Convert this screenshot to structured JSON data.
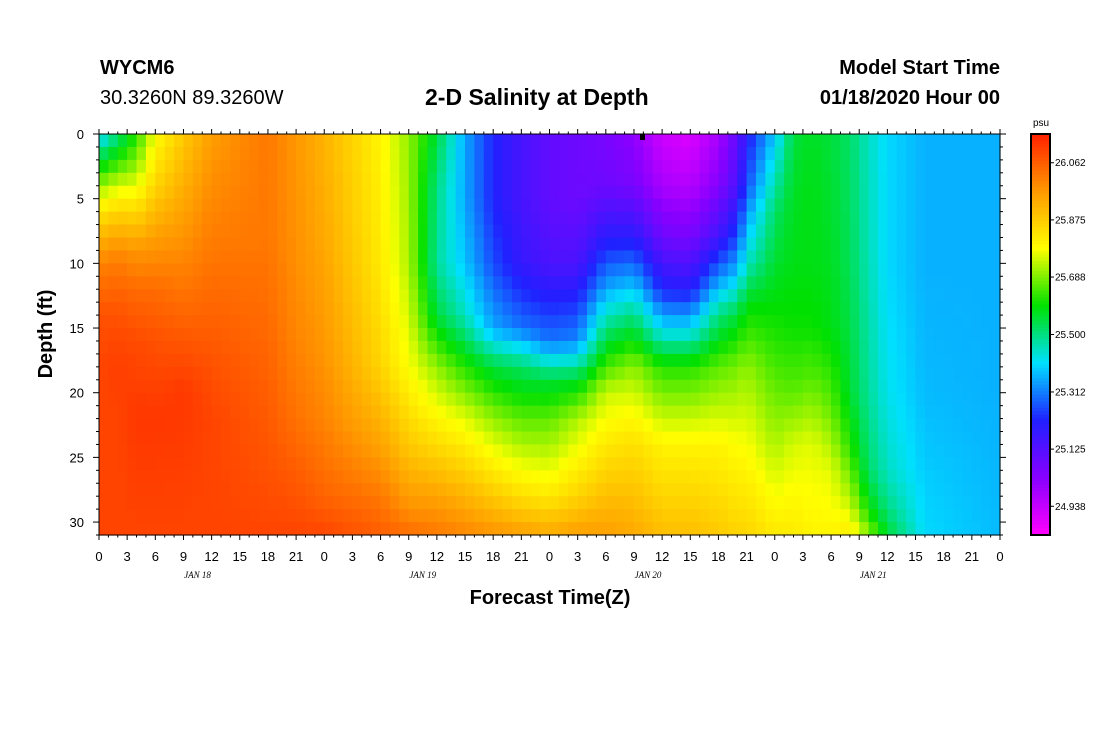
{
  "header": {
    "station_id": "WYCM6",
    "coords": "30.3260N 89.3260W",
    "title": "2-D Salinity at Depth",
    "start_label": "Model Start Time",
    "start_value": "01/18/2020 Hour 00"
  },
  "chart_data": {
    "type": "heatmap",
    "title": "2-D Salinity at Depth",
    "xlabel": "Forecast Time(Z)",
    "ylabel": "Depth (ft)",
    "x_hours_range": [
      0,
      96
    ],
    "x_tick_labels": [
      "0",
      "3",
      "6",
      "9",
      "12",
      "15",
      "18",
      "21",
      "0",
      "3",
      "6",
      "9",
      "12",
      "15",
      "18",
      "21",
      "0",
      "3",
      "6",
      "9",
      "12",
      "15",
      "18",
      "21",
      "0",
      "3",
      "6",
      "9",
      "12",
      "15",
      "18",
      "21",
      "0"
    ],
    "day_labels": [
      "JAN 18",
      "JAN 19",
      "JAN 20",
      "JAN 21"
    ],
    "y_ticks": [
      0,
      5,
      10,
      15,
      20,
      25,
      30
    ],
    "ylim": [
      0,
      31
    ],
    "y_inverted": true,
    "colorbar": {
      "unit": "psu",
      "ticks": [
        26.062,
        25.875,
        25.688,
        25.5,
        25.312,
        25.125,
        24.938
      ],
      "tick_labels": [
        "26.062",
        "25.875",
        "25.688",
        "25.500",
        "25.312",
        "25.125",
        "24.938"
      ],
      "range": [
        24.844,
        26.156
      ],
      "colors": [
        "#ff00ff",
        "#8800ff",
        "#2020ff",
        "#00e0ff",
        "#00e000",
        "#ffff00",
        "#ff9900",
        "#ff2000"
      ]
    },
    "columns_hours": [
      0,
      2,
      4,
      6,
      9,
      12,
      18,
      21,
      24,
      30,
      33,
      36,
      39,
      42,
      45,
      48,
      51,
      54,
      57,
      60,
      63,
      66,
      68,
      69,
      72,
      74,
      76,
      78,
      80,
      82,
      84,
      88,
      96
    ],
    "column_profiles": [
      {
        "depths": [
          0,
          2,
          4,
          6,
          8,
          10,
          14,
          18,
          22,
          31
        ],
        "salinity": [
          25.38,
          25.55,
          25.7,
          25.82,
          25.92,
          26.0,
          26.08,
          26.1,
          26.1,
          26.1
        ]
      },
      {
        "depths": [
          0,
          2,
          4,
          6,
          8,
          10,
          14,
          18,
          22,
          31
        ],
        "salinity": [
          25.5,
          25.62,
          25.75,
          25.86,
          25.95,
          26.02,
          26.08,
          26.11,
          26.1,
          26.1
        ]
      },
      {
        "depths": [
          0,
          3,
          6,
          9,
          12,
          16,
          22,
          31
        ],
        "salinity": [
          25.62,
          25.72,
          25.85,
          25.97,
          26.04,
          26.09,
          26.12,
          26.1
        ]
      },
      {
        "depths": [
          0,
          4,
          8,
          12,
          16,
          22,
          31
        ],
        "salinity": [
          25.78,
          25.86,
          25.96,
          26.04,
          26.08,
          26.12,
          26.1
        ]
      },
      {
        "depths": [
          0,
          5,
          10,
          15,
          20,
          31
        ],
        "salinity": [
          25.88,
          25.94,
          26.0,
          26.06,
          26.12,
          26.1
        ]
      },
      {
        "depths": [
          0,
          6,
          12,
          18,
          22,
          31
        ],
        "salinity": [
          25.96,
          26.0,
          26.04,
          26.08,
          26.1,
          26.1
        ]
      },
      {
        "depths": [
          0,
          8,
          14,
          20,
          26,
          31
        ],
        "salinity": [
          26.02,
          26.02,
          26.04,
          26.06,
          26.08,
          26.1
        ]
      },
      {
        "depths": [
          0,
          8,
          16,
          22,
          27,
          31
        ],
        "salinity": [
          25.97,
          25.98,
          26.0,
          26.03,
          26.07,
          26.1
        ]
      },
      {
        "depths": [
          0,
          8,
          16,
          22,
          28,
          31
        ],
        "salinity": [
          25.92,
          25.94,
          25.97,
          26.0,
          26.05,
          26.1
        ]
      },
      {
        "depths": [
          0,
          10,
          18,
          24,
          28,
          31
        ],
        "salinity": [
          25.8,
          25.82,
          25.86,
          25.95,
          26.02,
          26.06
        ]
      },
      {
        "depths": [
          0,
          10,
          18,
          24,
          29,
          31
        ],
        "salinity": [
          25.7,
          25.72,
          25.78,
          25.88,
          25.98,
          26.04
        ]
      },
      {
        "depths": [
          0,
          4,
          10,
          14,
          18,
          23,
          28,
          31
        ],
        "salinity": [
          25.55,
          25.5,
          25.48,
          25.55,
          25.7,
          25.82,
          25.95,
          26.02
        ]
      },
      {
        "depths": [
          0,
          5,
          10,
          14,
          18,
          22,
          28,
          31
        ],
        "salinity": [
          25.35,
          25.35,
          25.38,
          25.45,
          25.62,
          25.76,
          25.92,
          26.0
        ]
      },
      {
        "depths": [
          0,
          5,
          10,
          15,
          18,
          22,
          28,
          31
        ],
        "salinity": [
          25.22,
          25.22,
          25.26,
          25.35,
          25.55,
          25.7,
          25.88,
          25.98
        ]
      },
      {
        "depths": [
          0,
          5,
          10,
          15,
          18,
          22,
          28,
          31
        ],
        "salinity": [
          25.15,
          25.15,
          25.18,
          25.3,
          25.52,
          25.66,
          25.84,
          25.96
        ]
      },
      {
        "depths": [
          0,
          5,
          10,
          16,
          19,
          22,
          28,
          31
        ],
        "salinity": [
          25.1,
          25.1,
          25.14,
          25.3,
          25.55,
          25.66,
          25.82,
          25.94
        ]
      },
      {
        "depths": [
          0,
          5,
          10,
          16,
          19,
          22,
          28,
          31
        ],
        "salinity": [
          25.08,
          25.08,
          25.14,
          25.32,
          25.56,
          25.72,
          25.86,
          25.96
        ]
      },
      {
        "depths": [
          0,
          4,
          8,
          12,
          16,
          20,
          26,
          31
        ],
        "salinity": [
          25.06,
          25.08,
          25.2,
          25.35,
          25.55,
          25.74,
          25.86,
          25.96
        ]
      },
      {
        "depths": [
          0,
          4,
          8,
          11,
          14,
          18,
          24,
          31
        ],
        "salinity": [
          25.02,
          25.06,
          25.2,
          25.34,
          25.5,
          25.7,
          25.84,
          25.94
        ]
      },
      {
        "depths": [
          0,
          4,
          8,
          12,
          15,
          18,
          24,
          31
        ],
        "salinity": [
          24.92,
          24.98,
          25.08,
          25.22,
          25.4,
          25.62,
          25.8,
          25.9
        ]
      },
      {
        "depths": [
          0,
          4,
          8,
          12,
          15,
          18,
          24,
          31
        ],
        "salinity": [
          24.9,
          24.96,
          25.06,
          25.2,
          25.4,
          25.62,
          25.8,
          25.9
        ]
      },
      {
        "depths": [
          0,
          4,
          8,
          11,
          14,
          18,
          24,
          31
        ],
        "salinity": [
          24.98,
          25.04,
          25.16,
          25.32,
          25.5,
          25.66,
          25.8,
          25.88
        ]
      },
      {
        "depths": [
          0,
          4,
          8,
          11,
          14,
          18,
          24,
          31
        ],
        "salinity": [
          25.1,
          25.14,
          25.26,
          25.38,
          25.55,
          25.68,
          25.78,
          25.86
        ]
      },
      {
        "depths": [
          0,
          4,
          7,
          10,
          13,
          18,
          24,
          31
        ],
        "salinity": [
          25.2,
          25.26,
          25.36,
          25.45,
          25.58,
          25.7,
          25.78,
          25.86
        ]
      },
      {
        "depths": [
          0,
          3,
          6,
          10,
          16,
          24,
          31
        ],
        "salinity": [
          25.38,
          25.45,
          25.52,
          25.56,
          25.62,
          25.72,
          25.82
        ]
      },
      {
        "depths": [
          0,
          5,
          10,
          15,
          20,
          24,
          31
        ],
        "salinity": [
          25.55,
          25.57,
          25.58,
          25.6,
          25.66,
          25.75,
          25.82
        ]
      },
      {
        "depths": [
          0,
          5,
          10,
          15,
          19,
          24,
          31
        ],
        "salinity": [
          25.57,
          25.58,
          25.58,
          25.6,
          25.66,
          25.76,
          25.8
        ]
      },
      {
        "depths": [
          0,
          5,
          10,
          15,
          21,
          26,
          31
        ],
        "salinity": [
          25.55,
          25.56,
          25.57,
          25.58,
          25.66,
          25.76,
          25.8
        ]
      },
      {
        "depths": [
          0,
          10,
          20,
          24,
          28,
          31
        ],
        "salinity": [
          25.52,
          25.53,
          25.56,
          25.62,
          25.72,
          25.82
        ]
      },
      {
        "depths": [
          0,
          10,
          20,
          26,
          29,
          31
        ],
        "salinity": [
          25.45,
          25.46,
          25.48,
          25.52,
          25.6,
          25.7
        ]
      },
      {
        "depths": [
          0,
          10,
          20,
          26,
          29,
          31
        ],
        "salinity": [
          25.4,
          25.4,
          25.42,
          25.45,
          25.5,
          25.56
        ]
      },
      {
        "depths": [
          0,
          10,
          20,
          31
        ],
        "salinity": [
          25.36,
          25.36,
          25.37,
          25.4
        ]
      },
      {
        "depths": [
          0,
          10,
          20,
          31
        ],
        "salinity": [
          25.36,
          25.36,
          25.36,
          25.37
        ]
      }
    ]
  }
}
